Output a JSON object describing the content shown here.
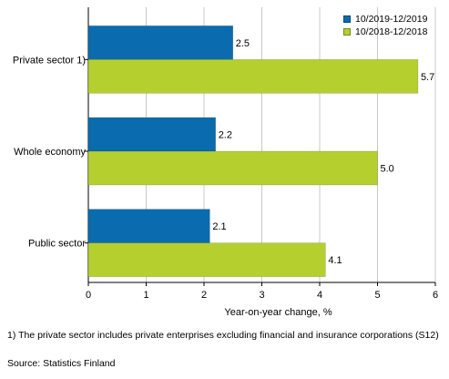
{
  "chart_data": {
    "type": "bar",
    "orientation": "horizontal",
    "categories": [
      "Private sector 1)",
      "Whole economy",
      "Public sector"
    ],
    "series": [
      {
        "name": "10/2019-12/2019",
        "values": [
          2.5,
          2.2,
          2.1
        ],
        "color": "#0a6cae"
      },
      {
        "name": "10/2018-12/2018",
        "values": [
          5.7,
          5.0,
          4.1
        ],
        "color": "#b5cf2e"
      }
    ],
    "data_labels": [
      [
        "2.5",
        "2.2",
        "2.1"
      ],
      [
        "5.7",
        "5.0",
        "4.1"
      ]
    ],
    "xlabel": "Year-on-year change, %",
    "xlim": [
      0,
      6
    ],
    "xticks": [
      "0",
      "1",
      "2",
      "3",
      "4",
      "5",
      "6"
    ],
    "grid": "vertical",
    "legend_position": "top-right"
  },
  "footnote": "1) The private sector includes private enterprises excluding financial and insurance corporations (S12)",
  "source": "Source: Statistics Finland"
}
